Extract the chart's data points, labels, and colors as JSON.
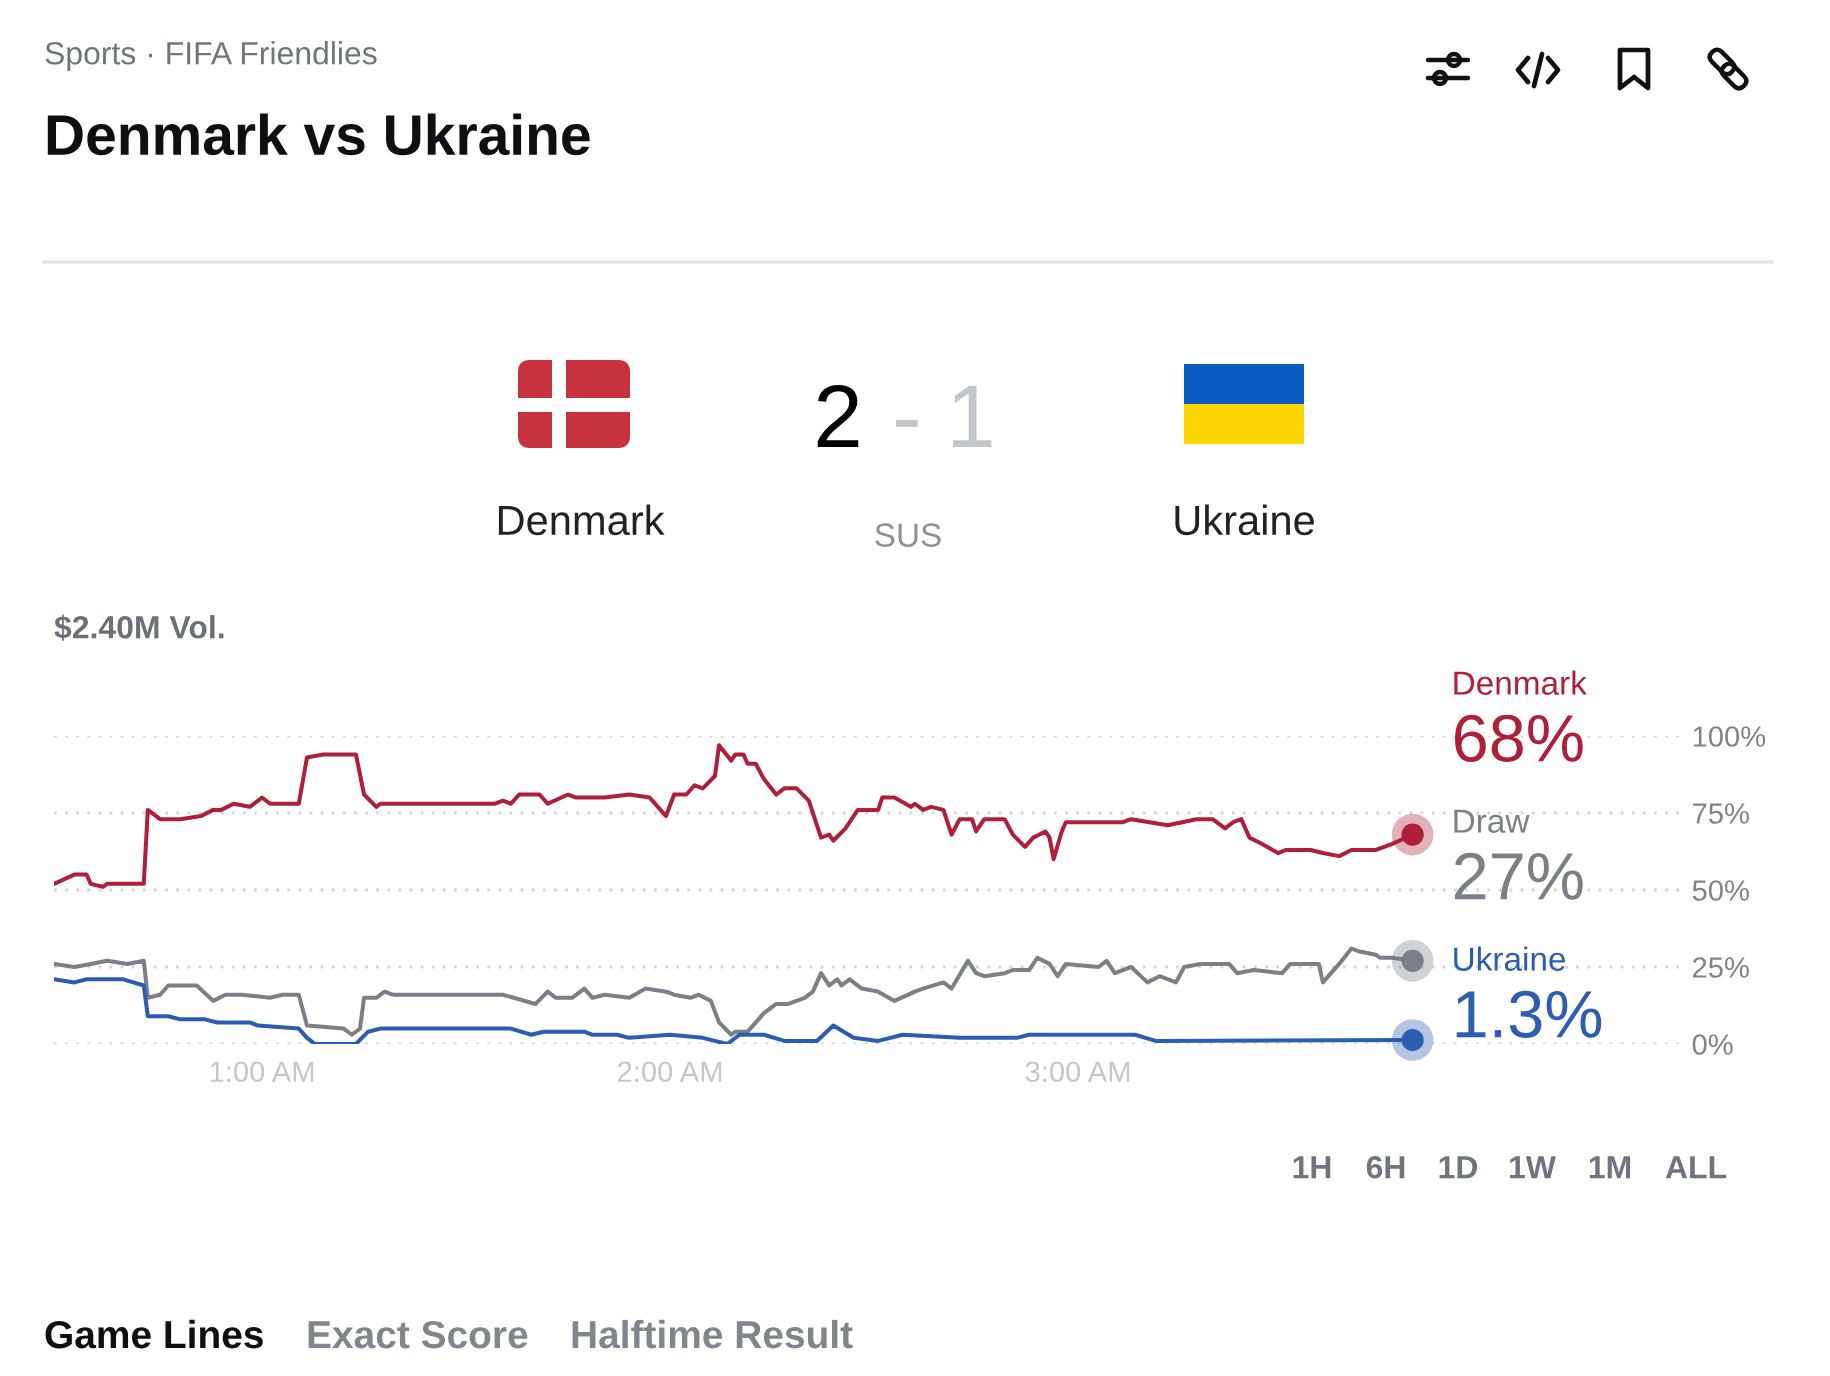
{
  "chart_data": {
    "type": "line",
    "title": "Denmark vs Ukraine",
    "subtitle": "Sports · FIFA Friendlies",
    "series": [
      {
        "name": "Denmark",
        "color": "#b01f3a",
        "x": [
          0.49,
          0.54,
          0.57,
          0.58,
          0.61,
          0.62,
          0.71,
          0.72,
          0.75,
          0.8,
          0.85,
          0.88,
          0.9,
          0.93,
          0.97,
          1.0,
          1.02,
          1.09,
          1.11,
          1.15,
          1.23,
          1.25,
          1.28,
          1.29,
          1.38,
          1.41,
          1.57,
          1.59,
          1.61,
          1.63,
          1.68,
          1.7,
          1.75,
          1.77,
          1.82,
          1.84,
          1.9,
          1.95,
          1.99,
          2.01,
          2.04,
          2.06,
          2.08,
          2.11,
          2.12,
          2.15,
          2.16,
          2.18,
          2.19,
          2.21,
          2.23,
          2.26,
          2.28,
          2.31,
          2.34,
          2.37,
          2.39,
          2.4,
          2.43,
          2.46,
          2.51,
          2.52,
          2.55,
          2.59,
          2.6,
          2.62,
          2.64,
          2.67,
          2.69,
          2.71,
          2.74,
          2.75,
          2.77,
          2.82,
          2.84,
          2.87,
          2.89,
          2.92,
          2.93,
          2.94,
          2.96,
          2.97,
          3.11,
          3.13,
          3.22,
          3.29,
          3.33,
          3.36,
          3.38,
          3.4,
          3.42,
          3.45,
          3.49,
          3.51,
          3.57,
          3.6,
          3.64,
          3.67,
          3.73,
          3.77,
          3.82
        ],
        "values": [
          52,
          55,
          55,
          52,
          51,
          52,
          52,
          76,
          73,
          73,
          74,
          76,
          76,
          78,
          77,
          80,
          78,
          78,
          93,
          94,
          94,
          81,
          77,
          78,
          78,
          78,
          78,
          79,
          78,
          81,
          81,
          78,
          81,
          80,
          80,
          80,
          81,
          80,
          74,
          81,
          81,
          84,
          83,
          87,
          97,
          92,
          94,
          94,
          91,
          91,
          86,
          81,
          83,
          83,
          79,
          67,
          68,
          66,
          70,
          76,
          76,
          80,
          80,
          77,
          78,
          76,
          77,
          76,
          68,
          73,
          73,
          69,
          73,
          73,
          68,
          64,
          67,
          69,
          67,
          60,
          69,
          72,
          72,
          73,
          71,
          73,
          73,
          70,
          72,
          73,
          67,
          65,
          62,
          63,
          63,
          62,
          61,
          63,
          63,
          65,
          68
        ]
      },
      {
        "name": "Draw",
        "color": "#7a7f88",
        "x": [
          0.49,
          0.54,
          0.58,
          0.62,
          0.67,
          0.71,
          0.72,
          0.75,
          0.77,
          0.84,
          0.88,
          0.91,
          0.95,
          1.02,
          1.05,
          1.09,
          1.11,
          1.2,
          1.22,
          1.24,
          1.25,
          1.28,
          1.3,
          1.32,
          1.59,
          1.67,
          1.7,
          1.72,
          1.76,
          1.79,
          1.81,
          1.84,
          1.9,
          1.94,
          1.99,
          2.01,
          2.05,
          2.07,
          2.1,
          2.12,
          2.15,
          2.16,
          2.19,
          2.23,
          2.26,
          2.29,
          2.33,
          2.35,
          2.37,
          2.39,
          2.41,
          2.42,
          2.44,
          2.47,
          2.51,
          2.55,
          2.6,
          2.62,
          2.67,
          2.69,
          2.73,
          2.75,
          2.77,
          2.82,
          2.84,
          2.88,
          2.9,
          2.93,
          2.95,
          2.97,
          3.05,
          3.07,
          3.09,
          3.13,
          3.17,
          3.2,
          3.24,
          3.26,
          3.3,
          3.37,
          3.39,
          3.43,
          3.5,
          3.52,
          3.55,
          3.59,
          3.6,
          3.64,
          3.67,
          3.69,
          3.73,
          3.74,
          3.77,
          3.82
        ],
        "values": [
          26,
          25,
          26,
          27,
          26,
          27,
          15,
          16,
          19,
          19,
          14,
          16,
          16,
          15,
          16,
          16,
          6,
          5,
          3,
          5,
          15,
          15,
          17,
          16,
          16,
          13,
          17,
          15,
          15,
          18,
          15,
          16,
          15,
          18,
          17,
          16,
          15,
          16,
          14,
          7,
          3,
          4,
          4,
          10,
          13,
          13,
          15,
          17,
          23,
          19,
          21,
          19,
          21,
          18,
          17,
          14,
          17,
          18,
          20,
          18,
          27,
          23,
          22,
          23,
          24,
          24,
          28,
          26,
          22,
          26,
          25,
          27,
          23,
          25,
          20,
          22,
          20,
          25,
          26,
          26,
          23,
          24,
          23,
          26,
          26,
          26,
          20,
          26,
          31,
          30,
          29,
          28,
          28,
          27
        ]
      },
      {
        "name": "Ukraine",
        "color": "#2b5db2",
        "x": [
          0.49,
          0.54,
          0.57,
          0.66,
          0.71,
          0.72,
          0.77,
          0.8,
          0.86,
          0.89,
          0.95,
          0.97,
          0.99,
          1.09,
          1.11,
          1.13,
          1.23,
          1.26,
          1.29,
          1.61,
          1.66,
          1.69,
          1.79,
          1.81,
          1.87,
          1.9,
          2.0,
          2.08,
          2.14,
          2.17,
          2.23,
          2.28,
          2.36,
          2.4,
          2.45,
          2.51,
          2.57,
          2.71,
          2.85,
          2.88,
          3.14,
          3.19,
          3.82
        ],
        "values": [
          21,
          20,
          21,
          21,
          19,
          9,
          9,
          8,
          8,
          7,
          7,
          7,
          6,
          5,
          2,
          0,
          0,
          4,
          5,
          5,
          3,
          4,
          4,
          3,
          3,
          2,
          3,
          2,
          0,
          3,
          3,
          1,
          1,
          6,
          2,
          1,
          3,
          2,
          2,
          3,
          3,
          1,
          1.3
        ]
      }
    ],
    "xlim": [
      0.49,
      4.49
    ],
    "xticks": [
      {
        "value": 1,
        "label": "1:00 AM"
      },
      {
        "value": 2,
        "label": "2:00 AM"
      },
      {
        "value": 3,
        "label": "3:00 AM"
      }
    ],
    "ylim": [
      0,
      100
    ],
    "yticks": [
      {
        "value": 0,
        "label": "0%"
      },
      {
        "value": 25,
        "label": "25%"
      },
      {
        "value": 50,
        "label": "50%"
      },
      {
        "value": 75,
        "label": "75%"
      },
      {
        "value": 100,
        "label": "100%"
      }
    ],
    "grid": "y",
    "annotations": [
      "68%",
      "27%",
      "1.3%",
      "Denmark",
      "2",
      "- 1",
      "SUS",
      "Ukraine",
      "$2.40M Vol.",
      "1H",
      "6H",
      "1D",
      "1W",
      "1M",
      "ALL",
      "Game Lines",
      "Exact Score",
      "Halftime Result"
    ]
  }
}
